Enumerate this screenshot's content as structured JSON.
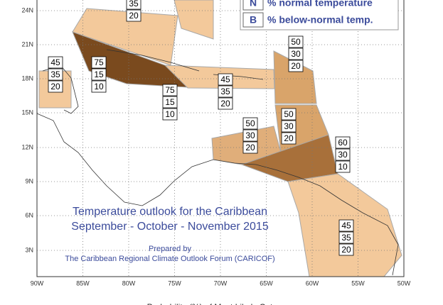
{
  "map": {
    "lat_labels": [
      "24N",
      "21N",
      "18N",
      "15N",
      "12N",
      "9N",
      "6N",
      "3N"
    ],
    "lon_labels": [
      "90W",
      "85W",
      "80W",
      "75W",
      "70W",
      "65W",
      "60W",
      "55W",
      "50W"
    ],
    "legend": [
      {
        "key": "N",
        "label": "% normal temperature"
      },
      {
        "key": "B",
        "label": "% below-normal temp."
      }
    ],
    "title": [
      "Temperature outlook for the Caribbean",
      "September - October - November 2015"
    ],
    "credit": [
      "Prepared by",
      "The Caribbean Regional Climate Outlook Forum (CARICOF)"
    ],
    "footer": "Probability (%) of Most Likely Category",
    "regions": [
      {
        "values": [
          35,
          20
        ]
      },
      {
        "values": [
          45,
          35,
          20
        ]
      },
      {
        "values": [
          75,
          15,
          10
        ]
      },
      {
        "values": [
          75,
          15,
          10
        ]
      },
      {
        "values": [
          45,
          35,
          20
        ]
      },
      {
        "values": [
          50,
          30,
          20
        ]
      },
      {
        "values": [
          50,
          30,
          20
        ]
      },
      {
        "values": [
          50,
          30,
          20
        ]
      },
      {
        "values": [
          60,
          30,
          10
        ]
      },
      {
        "values": [
          45,
          35,
          20
        ]
      }
    ]
  }
}
